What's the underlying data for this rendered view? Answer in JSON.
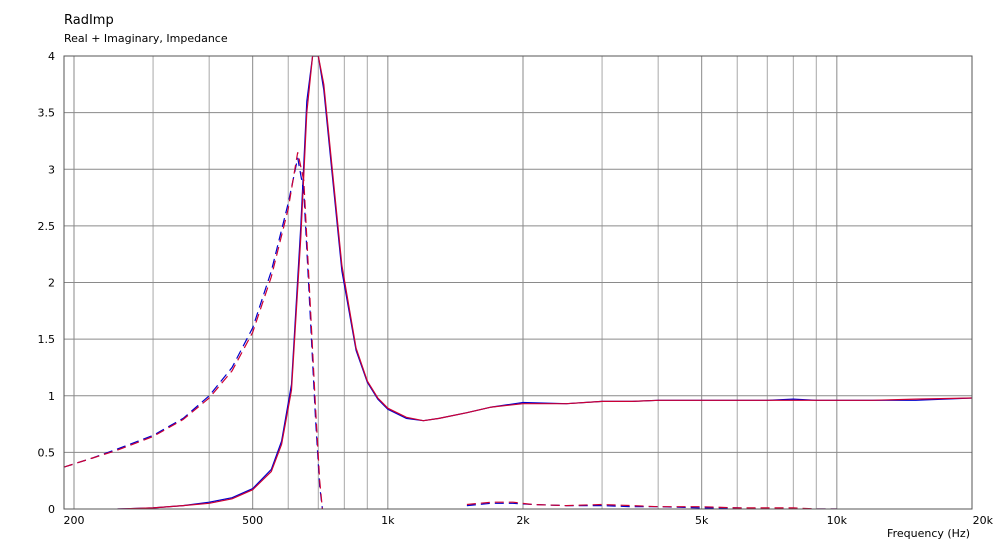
{
  "title": "RadImp",
  "subtitle": "Real + Imaginary, Impedance",
  "chart_data": {
    "type": "line",
    "title": "RadImp",
    "subtitle": "Real + Imaginary, Impedance",
    "xlabel": "Frequency  (Hz)",
    "ylabel": "",
    "xscale": "log",
    "xlim": [
      190,
      20000
    ],
    "ylim": [
      0,
      4
    ],
    "grid": true,
    "x_ticks": [
      {
        "value": 200,
        "label": "200"
      },
      {
        "value": 500,
        "label": "500"
      },
      {
        "value": 1000,
        "label": "1k"
      },
      {
        "value": 2000,
        "label": "2k"
      },
      {
        "value": 5000,
        "label": "5k"
      },
      {
        "value": 10000,
        "label": "10k"
      },
      {
        "value": 20000,
        "label": "20k"
      }
    ],
    "y_ticks": [
      {
        "value": 0,
        "label": "0"
      },
      {
        "value": 0.5,
        "label": "0.5"
      },
      {
        "value": 1,
        "label": "1"
      },
      {
        "value": 1.5,
        "label": "1.5"
      },
      {
        "value": 2,
        "label": "2"
      },
      {
        "value": 2.5,
        "label": "2.5"
      },
      {
        "value": 3,
        "label": "3"
      },
      {
        "value": 3.5,
        "label": "3.5"
      },
      {
        "value": 4,
        "label": "4"
      }
    ],
    "series": [
      {
        "color": "#0000cc",
        "style": "solid",
        "x": [
          250,
          300,
          350,
          400,
          450,
          500,
          550,
          580,
          610,
          640,
          660,
          680,
          700,
          720,
          750,
          790,
          850,
          900,
          950,
          1000,
          1100,
          1200,
          1300,
          1500,
          1700,
          2000,
          2500,
          3000,
          3500,
          4000,
          5000,
          6000,
          7000,
          8000,
          9000,
          10000,
          12000,
          15000,
          20000
        ],
        "y": [
          0,
          0.01,
          0.03,
          0.06,
          0.1,
          0.18,
          0.35,
          0.6,
          1.1,
          2.5,
          3.6,
          4.0,
          4.0,
          3.7,
          3.0,
          2.1,
          1.4,
          1.12,
          0.97,
          0.88,
          0.8,
          0.78,
          0.8,
          0.85,
          0.9,
          0.94,
          0.93,
          0.95,
          0.95,
          0.96,
          0.96,
          0.96,
          0.96,
          0.97,
          0.96,
          0.96,
          0.96,
          0.96,
          0.98
        ]
      },
      {
        "color": "#cc0033",
        "style": "solid",
        "x": [
          250,
          300,
          350,
          400,
          450,
          500,
          550,
          580,
          610,
          640,
          660,
          680,
          700,
          720,
          750,
          790,
          850,
          900,
          950,
          1000,
          1100,
          1200,
          1300,
          1500,
          1700,
          2000,
          2500,
          3000,
          3500,
          4000,
          5000,
          6000,
          7000,
          8000,
          9000,
          10000,
          12000,
          15000,
          20000
        ],
        "y": [
          0,
          0.01,
          0.03,
          0.05,
          0.09,
          0.17,
          0.33,
          0.57,
          1.05,
          2.4,
          3.5,
          4.0,
          4.0,
          3.75,
          3.05,
          2.15,
          1.42,
          1.13,
          0.98,
          0.89,
          0.81,
          0.78,
          0.8,
          0.85,
          0.9,
          0.93,
          0.93,
          0.95,
          0.95,
          0.96,
          0.96,
          0.96,
          0.96,
          0.96,
          0.96,
          0.96,
          0.96,
          0.97,
          0.98
        ]
      },
      {
        "color": "#0000cc",
        "style": "dashed",
        "x": [
          190,
          220,
          250,
          300,
          350,
          400,
          450,
          500,
          550,
          600,
          630,
          650,
          670,
          690,
          705,
          715
        ],
        "y": [
          0.37,
          0.45,
          0.53,
          0.65,
          0.8,
          1.0,
          1.25,
          1.6,
          2.1,
          2.7,
          3.1,
          2.8,
          1.8,
          0.8,
          0.2,
          0
        ],
        "extra_x": [
          1500,
          1700,
          1900,
          2100,
          2500,
          3000,
          3500,
          4000,
          5000,
          6000,
          7000,
          8000,
          9000,
          10000
        ],
        "extra_y": [
          0.03,
          0.05,
          0.05,
          0.04,
          0.03,
          0.03,
          0.02,
          0.02,
          0.01,
          0.01,
          0.0,
          0.0,
          0.0,
          0.0
        ]
      },
      {
        "color": "#cc0033",
        "style": "dashed",
        "x": [
          190,
          220,
          250,
          300,
          350,
          400,
          450,
          500,
          550,
          600,
          630,
          650,
          670,
          690,
          705,
          715
        ],
        "y": [
          0.37,
          0.45,
          0.52,
          0.64,
          0.79,
          0.98,
          1.22,
          1.56,
          2.05,
          2.65,
          3.15,
          2.9,
          1.9,
          0.9,
          0.25,
          0
        ],
        "extra_x": [
          1500,
          1700,
          1900,
          2100,
          2500,
          3000,
          3500,
          4000,
          5000,
          6000,
          7000,
          8000,
          9000,
          10000
        ],
        "extra_y": [
          0.04,
          0.06,
          0.06,
          0.04,
          0.03,
          0.04,
          0.03,
          0.02,
          0.02,
          0.01,
          0.01,
          0.01,
          0.0,
          0.0
        ]
      }
    ]
  }
}
